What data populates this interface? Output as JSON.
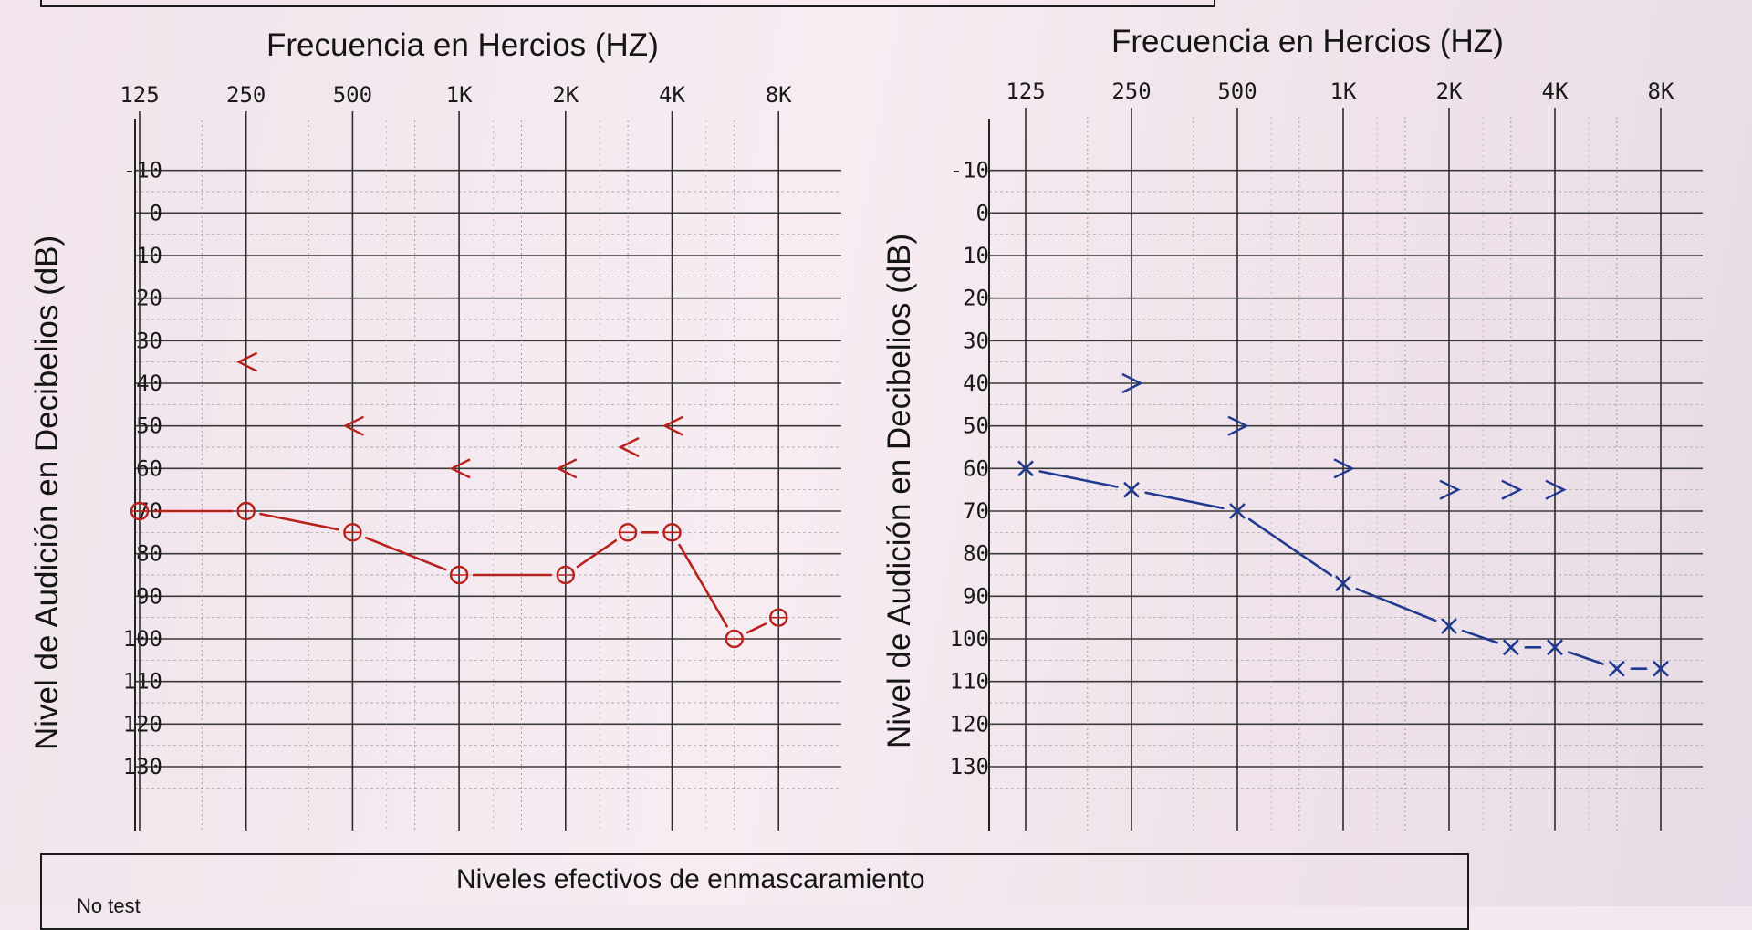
{
  "chart_data": [
    {
      "type": "line",
      "title": "Frecuencia en Hercios (HZ)",
      "ylabel": "Nivel de Audición en Decibelios (dB)",
      "categories": [
        "125",
        "250",
        "500",
        "1K",
        "2K",
        "4K",
        "8K"
      ],
      "y_ticks": [
        "-10",
        "0",
        "10",
        "20",
        "30",
        "40",
        "50",
        "60",
        "70",
        "80",
        "90",
        "100",
        "110",
        "120",
        "130"
      ],
      "ylim": [
        -20,
        145
      ],
      "y_inverted": true,
      "color": "#b8221c",
      "series": [
        {
          "marker": "circle",
          "connected": true,
          "x": [
            "125",
            "250",
            "500",
            "1K",
            "2K",
            "3K",
            "4K",
            "6K",
            "8K"
          ],
          "values": [
            70,
            70,
            75,
            85,
            85,
            75,
            75,
            100,
            95
          ]
        },
        {
          "marker": "<",
          "connected": false,
          "x": [
            "250",
            "500",
            "1K",
            "2K",
            "3K",
            "4K"
          ],
          "values": [
            35,
            50,
            60,
            60,
            55,
            50
          ]
        }
      ],
      "grid": true
    },
    {
      "type": "line",
      "title": "Frecuencia en Hercios (HZ)",
      "ylabel": "Nivel de Audición en Decibelios (dB)",
      "categories": [
        "125",
        "250",
        "500",
        "1K",
        "2K",
        "4K",
        "8K"
      ],
      "y_ticks": [
        "-10",
        "0",
        "10",
        "20",
        "30",
        "40",
        "50",
        "60",
        "70",
        "80",
        "90",
        "100",
        "110",
        "120",
        "130"
      ],
      "ylim": [
        -20,
        145
      ],
      "y_inverted": true,
      "color": "#1f3a8f",
      "series": [
        {
          "marker": "x",
          "connected": true,
          "x": [
            "125",
            "250",
            "500",
            "1K",
            "2K",
            "3K",
            "4K",
            "6K",
            "8K"
          ],
          "values": [
            60,
            65,
            70,
            87,
            97,
            102,
            102,
            107,
            107
          ]
        },
        {
          "marker": ">",
          "connected": false,
          "x": [
            "250",
            "500",
            "1K",
            "2K",
            "3K",
            "4K"
          ],
          "values": [
            40,
            50,
            60,
            65,
            65,
            65
          ]
        }
      ],
      "grid": true
    }
  ],
  "footer": {
    "title": "Niveles efectivos de enmascaramiento",
    "note": "No test"
  }
}
